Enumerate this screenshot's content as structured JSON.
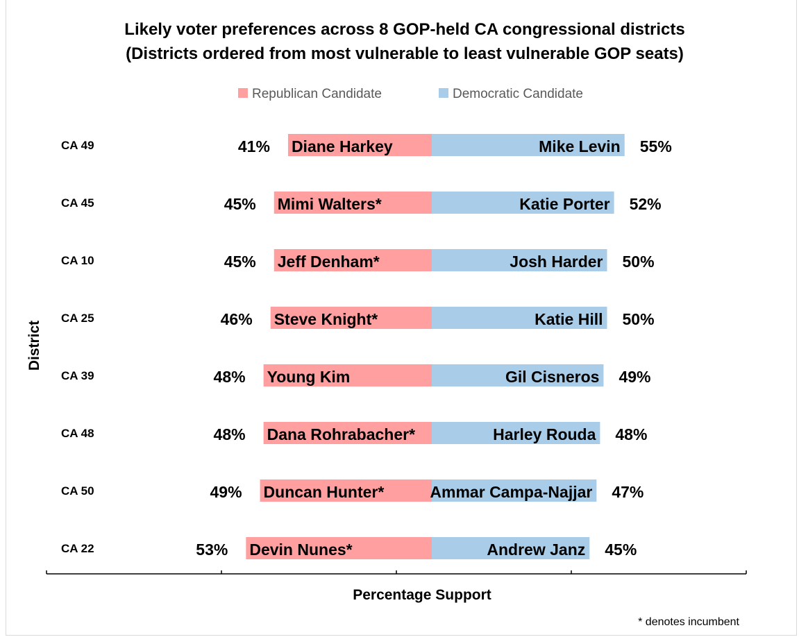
{
  "chart_data": {
    "type": "bar",
    "orientation": "horizontal-diverging",
    "title": "Likely voter preferences across 8 GOP-held CA congressional districts",
    "subtitle": "(Districts ordered from most vulnerable to least vulnerable GOP seats)",
    "xlabel": "Percentage Support",
    "ylabel": "District",
    "footnote": "* denotes incumbent",
    "legend_position": "top",
    "grid": false,
    "colors": {
      "republican": "#ff9f9f",
      "democratic": "#a9cde9"
    },
    "series": [
      {
        "name": "Republican Candidate",
        "key": "republican"
      },
      {
        "name": "Democratic Candidate",
        "key": "democratic"
      }
    ],
    "categories": [
      "CA 49",
      "CA 45",
      "CA 10",
      "CA 25",
      "CA 39",
      "CA 48",
      "CA 50",
      "CA 22"
    ],
    "rows": [
      {
        "district": "CA 49",
        "rep_name": "Diane Harkey",
        "rep_value": 41,
        "rep_label": "41%",
        "dem_name": "Mike Levin",
        "dem_value": 55,
        "dem_label": "55%"
      },
      {
        "district": "CA 45",
        "rep_name": "Mimi Walters*",
        "rep_value": 45,
        "rep_label": "45%",
        "dem_name": "Katie Porter",
        "dem_value": 52,
        "dem_label": "52%"
      },
      {
        "district": "CA 10",
        "rep_name": "Jeff Denham*",
        "rep_value": 45,
        "rep_label": "45%",
        "dem_name": "Josh Harder",
        "dem_value": 50,
        "dem_label": "50%"
      },
      {
        "district": "CA 25",
        "rep_name": "Steve Knight*",
        "rep_value": 46,
        "rep_label": "46%",
        "dem_name": "Katie Hill",
        "dem_value": 50,
        "dem_label": "50%"
      },
      {
        "district": "CA 39",
        "rep_name": "Young Kim",
        "rep_value": 48,
        "rep_label": "48%",
        "dem_name": "Gil Cisneros",
        "dem_value": 49,
        "dem_label": "49%"
      },
      {
        "district": "CA 48",
        "rep_name": "Dana Rohrabacher*",
        "rep_value": 48,
        "rep_label": "48%",
        "dem_name": "Harley Rouda",
        "dem_value": 48,
        "dem_label": "48%"
      },
      {
        "district": "CA 50",
        "rep_name": "Duncan Hunter*",
        "rep_value": 49,
        "rep_label": "49%",
        "dem_name": "Ammar Campa-Najjar",
        "dem_value": 47,
        "dem_label": "47%"
      },
      {
        "district": "CA 22",
        "rep_name": "Devin Nunes*",
        "rep_value": 53,
        "rep_label": "53%",
        "dem_name": "Andrew Janz",
        "dem_value": 45,
        "dem_label": "45%"
      }
    ]
  }
}
